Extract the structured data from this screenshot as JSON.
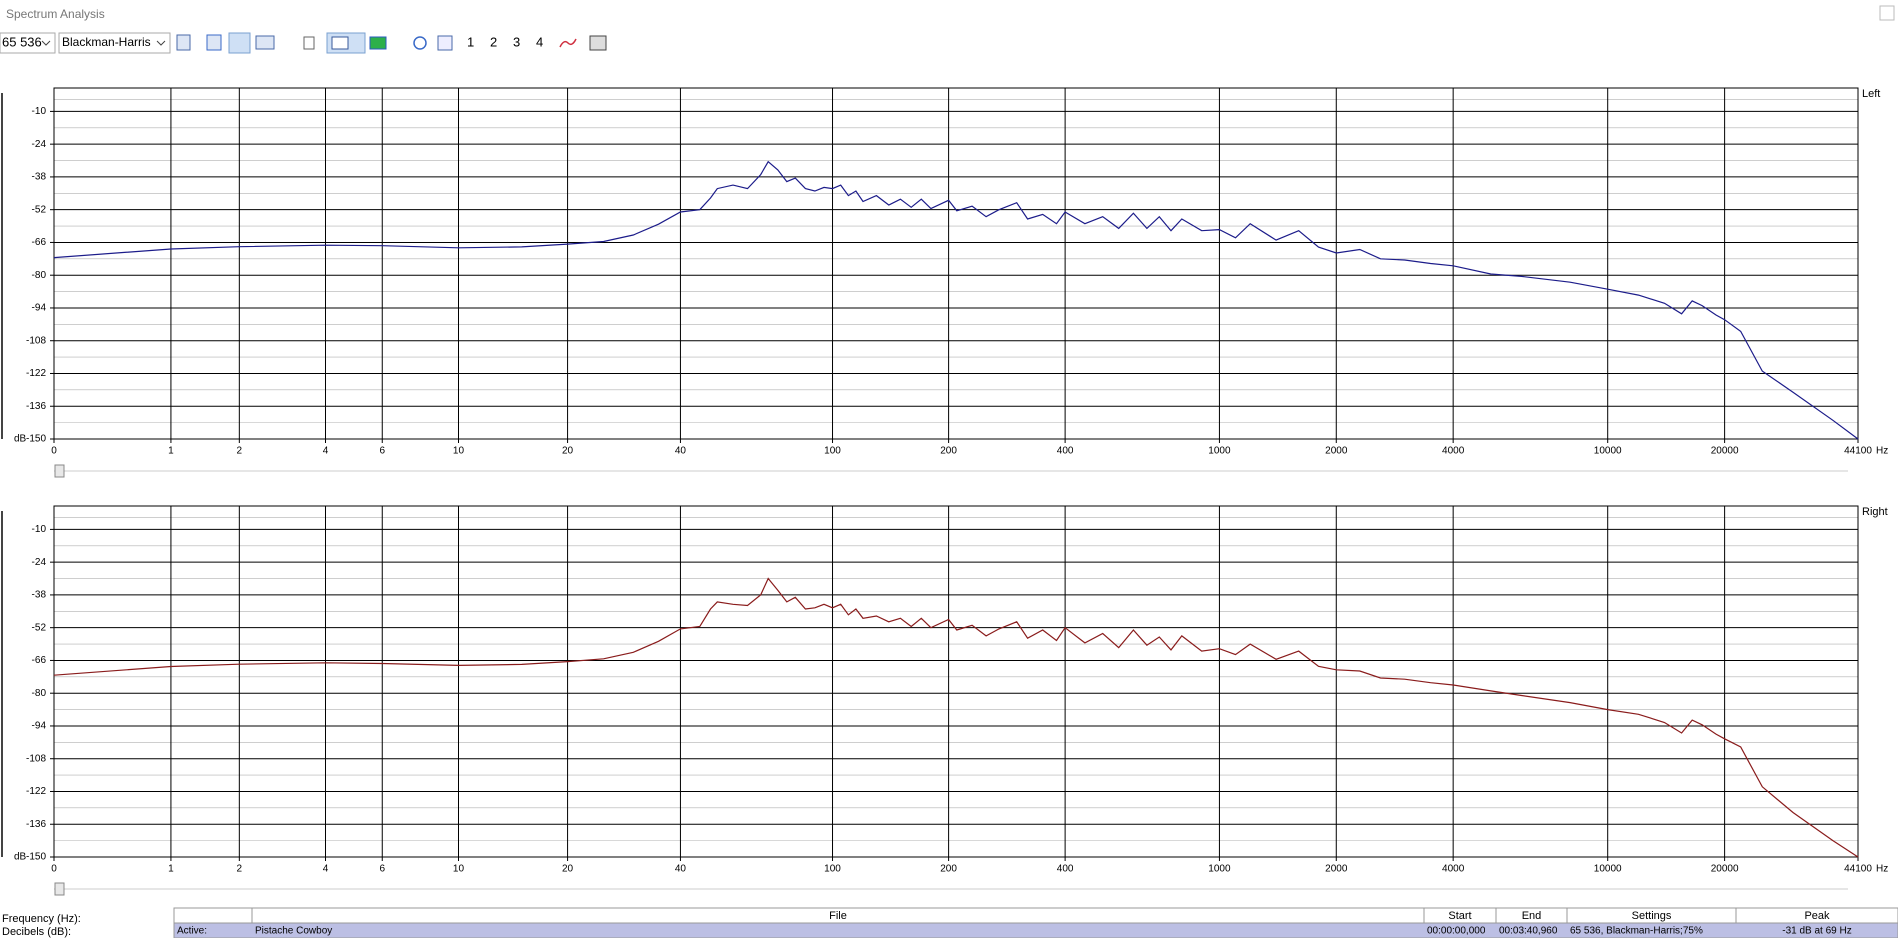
{
  "window": {
    "title": "Spectrum Analysis"
  },
  "toolbar": {
    "fft_size": "65 536",
    "window_function": "Blackman-Harris",
    "buttons": [
      "1",
      "2",
      "3",
      "4"
    ]
  },
  "chart_data": [
    {
      "type": "line",
      "title": "Left",
      "xlabel": "Hz",
      "ylabel": "dB",
      "xscale": "log",
      "color": "#1c1c8a",
      "grid": true,
      "xlim": [
        0,
        44100
      ],
      "xticks": [
        0,
        1,
        2,
        4,
        6,
        10,
        20,
        40,
        100,
        200,
        400,
        1000,
        2000,
        4000,
        10000,
        20000,
        44100
      ],
      "ylim": [
        -150,
        0
      ],
      "yticks": [
        -10,
        -24,
        -38,
        -52,
        -66,
        -80,
        -94,
        -108,
        -122,
        -136,
        -150
      ],
      "x": [
        0,
        1,
        2,
        4,
        6,
        10,
        15,
        20,
        25,
        30,
        35,
        40,
        45,
        48,
        50,
        55,
        60,
        65,
        68,
        72,
        76,
        80,
        85,
        90,
        95,
        100,
        105,
        110,
        115,
        120,
        130,
        140,
        150,
        160,
        170,
        180,
        200,
        210,
        230,
        250,
        270,
        300,
        320,
        350,
        380,
        400,
        450,
        500,
        550,
        600,
        650,
        700,
        750,
        800,
        900,
        1000,
        1100,
        1200,
        1400,
        1600,
        1800,
        2000,
        2300,
        2600,
        3000,
        3500,
        4000,
        5000,
        6000,
        8000,
        10000,
        12000,
        14000,
        15500,
        16500,
        17500,
        19000,
        20000,
        22000,
        25000,
        30000,
        38000,
        44100
      ],
      "values": [
        -72.5,
        -68.8,
        -67.8,
        -67.2,
        -67.4,
        -68.3,
        -67.9,
        -66.7,
        -65.6,
        -62.8,
        -58.2,
        -53,
        -52,
        -47,
        -43,
        -41.5,
        -43,
        -37,
        -31.5,
        -35,
        -40,
        -38.5,
        -43,
        -44,
        -42.5,
        -43,
        -41.5,
        -46,
        -44,
        -48.5,
        -46,
        -50,
        -47.5,
        -51,
        -47.5,
        -51.5,
        -48,
        -52.5,
        -50.5,
        -55,
        -52,
        -49,
        -56,
        -54,
        -58,
        -53,
        -58,
        -55,
        -60,
        -53.5,
        -60,
        -55,
        -61,
        -56,
        -61,
        -60.5,
        -64,
        -58,
        -65,
        -61,
        -68,
        -70.5,
        -69,
        -73,
        -73.5,
        -75,
        -76,
        -79.5,
        -80.5,
        -83,
        -86,
        -88.5,
        -92,
        -96.5,
        -91,
        -93,
        -97,
        -99,
        -104,
        -121,
        -130,
        -142,
        -150
      ]
    },
    {
      "type": "line",
      "title": "Right",
      "xlabel": "Hz",
      "ylabel": "dB",
      "xscale": "log",
      "color": "#8a1c1c",
      "grid": true,
      "xlim": [
        0,
        44100
      ],
      "xticks": [
        0,
        1,
        2,
        4,
        6,
        10,
        20,
        40,
        100,
        200,
        400,
        1000,
        2000,
        4000,
        10000,
        20000,
        44100
      ],
      "ylim": [
        -150,
        0
      ],
      "yticks": [
        -10,
        -24,
        -38,
        -52,
        -66,
        -80,
        -94,
        -108,
        -122,
        -136,
        -150
      ],
      "x": [
        0,
        1,
        2,
        4,
        6,
        10,
        15,
        20,
        25,
        30,
        35,
        40,
        45,
        48,
        50,
        55,
        60,
        65,
        68,
        72,
        76,
        80,
        85,
        90,
        95,
        100,
        105,
        110,
        115,
        120,
        130,
        140,
        150,
        160,
        170,
        180,
        200,
        210,
        230,
        250,
        270,
        300,
        320,
        350,
        380,
        400,
        450,
        500,
        550,
        600,
        650,
        700,
        750,
        800,
        900,
        1000,
        1100,
        1200,
        1400,
        1600,
        1800,
        2000,
        2300,
        2600,
        3000,
        3500,
        4000,
        5000,
        6000,
        8000,
        10000,
        12000,
        14000,
        15500,
        16500,
        17500,
        19000,
        20000,
        22000,
        25000,
        30000,
        38000,
        44100
      ],
      "values": [
        -72.3,
        -68.6,
        -67.6,
        -67.0,
        -67.3,
        -68.1,
        -67.7,
        -66.5,
        -65.3,
        -62.5,
        -57.8,
        -52.5,
        -51.5,
        -44,
        -41,
        -42,
        -42.5,
        -38,
        -31,
        -36,
        -41,
        -39,
        -44,
        -43.5,
        -42,
        -43.5,
        -42,
        -46.5,
        -44,
        -48,
        -47,
        -49.5,
        -48,
        -51.5,
        -48,
        -52,
        -48.5,
        -53,
        -51,
        -55.5,
        -52.5,
        -49.5,
        -56.5,
        -53,
        -57.5,
        -52,
        -58.5,
        -54.5,
        -60.5,
        -53,
        -59.5,
        -56,
        -61.5,
        -55.5,
        -62,
        -61,
        -63.5,
        -59,
        -65.5,
        -62,
        -68.5,
        -70,
        -70.5,
        -73.5,
        -74,
        -75.5,
        -76.5,
        -79,
        -81,
        -84,
        -87,
        -89,
        -92.5,
        -97,
        -91.5,
        -93.5,
        -97.5,
        -99.5,
        -103,
        -120,
        -131,
        -143,
        -150
      ]
    }
  ],
  "status": {
    "labels": [
      "Frequency (Hz):",
      "Decibels (dB):"
    ],
    "table": {
      "header": [
        "File",
        "Start",
        "End",
        "Settings",
        "Peak"
      ],
      "rows": [
        [
          "Active:",
          "Pistache Cowboy",
          "00:00:00,000",
          "00:03:40,960",
          "65 536, Blackman-Harris;75%",
          "-31 dB at 69 Hz"
        ]
      ]
    }
  }
}
